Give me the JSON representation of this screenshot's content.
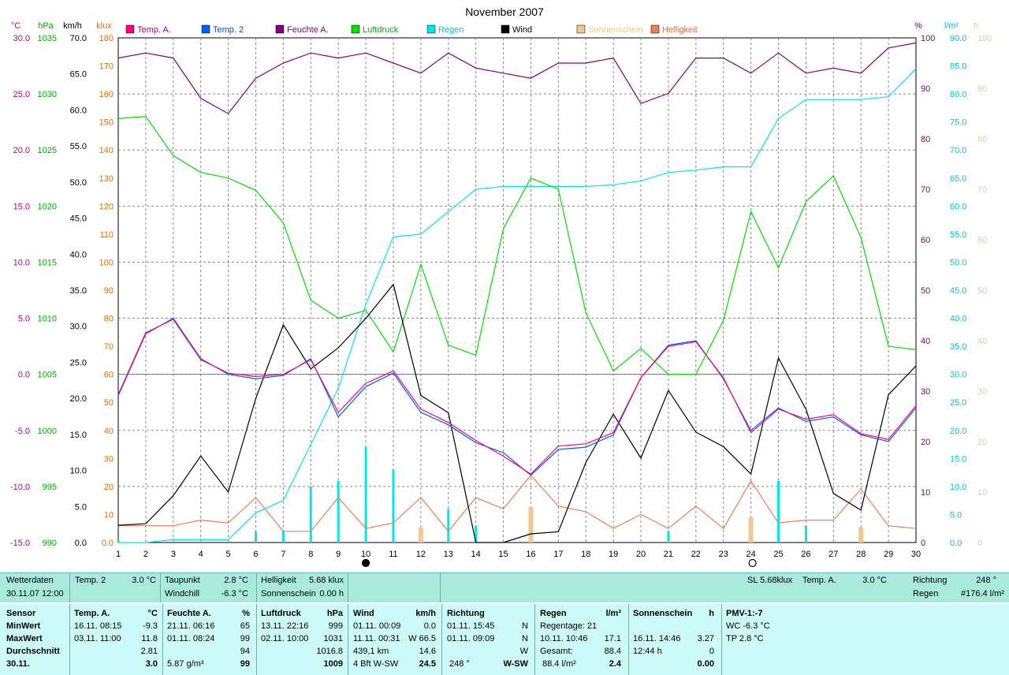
{
  "chart_data": {
    "type": "line",
    "title": "November 2007",
    "x": [
      1,
      2,
      3,
      4,
      5,
      6,
      7,
      8,
      9,
      10,
      11,
      12,
      13,
      14,
      15,
      16,
      17,
      18,
      19,
      20,
      21,
      22,
      23,
      24,
      25,
      26,
      27,
      28,
      29,
      30
    ],
    "left_axes": [
      {
        "unit": "°C",
        "color": "#c0007a",
        "range": [
          -15,
          30
        ],
        "ticks": [
          "30.0",
          "25.0",
          "20.0",
          "15.0",
          "10.0",
          "5.0",
          "0.0",
          "-5.0",
          "-10.0",
          "-15.0"
        ]
      },
      {
        "unit": "hPa",
        "color": "#00b000",
        "range": [
          990,
          1035
        ],
        "ticks": [
          "1035",
          "1030",
          "1025",
          "1020",
          "1015",
          "1010",
          "1005",
          "1000",
          "995",
          "990"
        ]
      },
      {
        "unit": "km/h",
        "color": "#000000",
        "range": [
          0,
          70
        ],
        "ticks": [
          "70.0",
          "65.0",
          "60.0",
          "55.0",
          "50.0",
          "45.0",
          "40.0",
          "35.0",
          "30.0",
          "25.0",
          "20.0",
          "15.0",
          "10.0",
          "5.0",
          "0.0"
        ]
      },
      {
        "unit": "klux",
        "color": "#e07000",
        "range": [
          0,
          180
        ],
        "ticks": [
          "180",
          "170",
          "160",
          "150",
          "140",
          "130",
          "120",
          "110",
          "100",
          "90",
          "80",
          "70",
          "60",
          "50",
          "40",
          "30",
          "20",
          "10",
          "0.0"
        ]
      }
    ],
    "right_axes": [
      {
        "unit": "%",
        "color": "#800080",
        "range": [
          0,
          100
        ],
        "ticks": [
          "100",
          "90",
          "80",
          "70",
          "60",
          "50",
          "40",
          "30",
          "20",
          "10",
          "0"
        ]
      },
      {
        "unit": "l/m²",
        "color": "#00c8c8",
        "range": [
          0,
          90
        ],
        "ticks": [
          "90.0",
          "85.0",
          "80.0",
          "75.0",
          "70.0",
          "65.0",
          "60.0",
          "55.0",
          "50.0",
          "45.0",
          "40.0",
          "35.0",
          "30.0",
          "25.0",
          "20.0",
          "15.0",
          "10.0",
          "5.0",
          "0.0"
        ]
      },
      {
        "unit": "h",
        "color": "#f0c890",
        "range": [
          0,
          100
        ],
        "ticks": [
          "100",
          "90",
          "80",
          "70",
          "60",
          "50",
          "40",
          "30",
          "20",
          "10",
          "0"
        ]
      }
    ],
    "legend": [
      {
        "name": "Temp. A.",
        "color": "#ff0080"
      },
      {
        "name": "Temp. 2",
        "color": "#0060ff"
      },
      {
        "name": "Feuchte A.",
        "color": "#800080"
      },
      {
        "name": "Luftdruck",
        "color": "#00e000"
      },
      {
        "name": "Regen",
        "color": "#00e8e8"
      },
      {
        "name": "Wind",
        "color": "#000000"
      },
      {
        "name": "Sonnenschein",
        "color": "#f0c890"
      },
      {
        "name": "Helligkeit",
        "color": "#f08050"
      }
    ],
    "series": [
      {
        "name": "Temp. A.",
        "axis": "temp",
        "color": "#ff0080",
        "values": [
          -1.8,
          3.7,
          4.9,
          1.3,
          0.1,
          -0.2,
          0.0,
          1.3,
          -3.4,
          -0.8,
          0.3,
          -3.1,
          -4.3,
          -5.9,
          -7.3,
          -8.9,
          -6.4,
          -6.2,
          -5.2,
          -0.3,
          2.5,
          2.9,
          -0.3,
          -5.2,
          -3.1,
          -4.0,
          -3.6,
          -5.3,
          -5.8,
          -2.8
        ]
      },
      {
        "name": "Temp. 2",
        "axis": "temp",
        "color": "#0060ff",
        "values": [
          -1.9,
          3.6,
          5.0,
          1.4,
          0.0,
          -0.4,
          -0.1,
          1.4,
          -3.8,
          -1.1,
          0.1,
          -3.4,
          -4.5,
          -6.1,
          -7.0,
          -9.0,
          -6.7,
          -6.5,
          -5.4,
          -0.3,
          2.6,
          3.0,
          -0.4,
          -5.0,
          -3.0,
          -4.2,
          -3.8,
          -5.4,
          -6.0,
          -3.0
        ]
      },
      {
        "name": "Feuchte A.",
        "axis": "hum",
        "color": "#800080",
        "values": [
          96,
          97,
          96,
          88,
          85,
          92,
          95,
          97,
          96,
          97,
          95,
          93,
          97,
          94,
          93,
          92,
          95,
          95,
          96,
          87,
          89,
          96,
          96,
          93,
          97,
          93,
          94,
          93,
          98,
          99
        ]
      },
      {
        "name": "Luftdruck",
        "axis": "press",
        "color": "#00e000",
        "values": [
          1027.8,
          1028,
          1024.5,
          1023,
          1022.5,
          1021.4,
          1018.5,
          1011.6,
          1010,
          1010.7,
          1007,
          1014.8,
          1007.6,
          1006.7,
          1018,
          1022.5,
          1021.5,
          1010.5,
          1005.3,
          1007.3,
          1005,
          1005,
          1009.8,
          1019.5,
          1014.5,
          1020.4,
          1022.7,
          1017.2,
          1007.5,
          1007.2
        ]
      },
      {
        "name": "Regen",
        "axis": "rain",
        "color": "#00e8e8",
        "values": [
          0,
          0,
          0.5,
          0.5,
          0.5,
          5.3,
          7.5,
          17.5,
          27.5,
          42.5,
          54.5,
          55,
          59,
          63,
          63.5,
          63.5,
          63.5,
          63.5,
          63.8,
          64.5,
          66,
          66.4,
          67,
          67,
          75.6,
          79,
          79,
          79,
          79.5,
          84.5
        ]
      },
      {
        "name": "Wind",
        "axis": "wind",
        "color": "#000000",
        "values": [
          2.4,
          2.6,
          6.5,
          12.0,
          7.0,
          20.0,
          30.2,
          24.1,
          27.0,
          31.1,
          35.8,
          20.4,
          18.0,
          0.0,
          0.0,
          1.2,
          1.5,
          11.1,
          17.8,
          11.7,
          21.1,
          15.3,
          13.3,
          9.5,
          25.6,
          18.5,
          6.8,
          4.5,
          20.5,
          24.5
        ]
      },
      {
        "name": "Helligkeit",
        "axis": "lux",
        "color": "#f08050",
        "values": [
          6,
          6,
          6,
          8,
          7,
          16,
          4,
          4,
          16,
          5,
          7,
          16,
          4,
          16,
          12,
          24,
          13,
          11,
          5,
          10,
          5,
          13,
          5,
          22,
          7,
          8,
          8,
          19,
          6,
          5
        ]
      }
    ],
    "rain_bars": [
      0.5,
      0,
      0,
      0,
      0,
      2,
      2,
      10,
      11,
      17,
      13,
      0,
      6,
      3,
      0,
      0,
      0,
      0,
      0,
      0,
      2,
      0,
      0,
      0,
      11,
      3,
      0,
      0,
      0,
      0
    ],
    "sun_bars": [
      0,
      0,
      0,
      0,
      0,
      0,
      0,
      0,
      0,
      0,
      0,
      3,
      0,
      0,
      0,
      7,
      0,
      0,
      0,
      0,
      0,
      0,
      0,
      5,
      0,
      0,
      0,
      3,
      0,
      0
    ],
    "moon_markers": [
      {
        "day": 10,
        "phase": "new"
      },
      {
        "day": 24,
        "phase": "full"
      }
    ]
  },
  "status": {
    "label1": "Wetterdaten",
    "value1": "30.11.07 12:00",
    "temp2_label": "Temp. 2",
    "temp2_value": "3.0 °C",
    "taupunkt_label": "Taupunkt",
    "taupunkt_value": "2.8 °C",
    "windchill_label": "Windchill",
    "windchill_value": "-6.3 °C",
    "hell_label": "Helligkeit",
    "hell_value": "5.68 klux",
    "sonne_label": "Sonnenschein",
    "sonne_value": "0.00 h",
    "sl": "SL 5.68klux",
    "tempa_label": "Temp. A.",
    "tempa_value": "3.0 °C",
    "richtung_label": "Richtung",
    "richtung_value": "248 °",
    "regen_label": "Regen",
    "regen_value": "#176.4 l/m²"
  },
  "stats": {
    "row_labels": [
      "Sensor",
      "MinWert",
      "MaxWert",
      "Durchschnitt",
      "30.11."
    ],
    "tempa": {
      "h": "Temp. A.",
      "u": "°C",
      "min_t": "16.11.  08:15",
      "min": "-9.3",
      "max_t": "03.11.  11:00",
      "max": "11.8",
      "avg": "2.81",
      "cur": "3.0"
    },
    "feuchte": {
      "h": "Feuchte A.",
      "u": "%",
      "min_t": "21.11.  06:16",
      "min": "65",
      "max_t": "01.11.  08:24",
      "max": "99",
      "avg": "94",
      "cur_t": "5.87 g/m³",
      "cur": "99"
    },
    "luft": {
      "h": "Luftdruck",
      "u": "hPa",
      "min_t": "13.11.  22:16",
      "min": "999",
      "max_t": "02.11.  10:00",
      "max": "1031",
      "avg": "1016.8",
      "cur": "1009"
    },
    "wind": {
      "h": "Wind",
      "u": "km/h",
      "min_t": "01.11.  00:09",
      "min": "0.0",
      "max_t": "11.11.  00:31",
      "max": "W 66.5",
      "avg_t": "439,1 km",
      "avg": "14.6",
      "cur_t": "4 Bft W-SW",
      "cur": "24.5"
    },
    "richtung": {
      "h": "Richtung",
      "min_t": "01.11.  15:45",
      "min": "N",
      "max_t": "01.11.  09:09",
      "max": "N",
      "avg": "W",
      "cur_t": "248 °",
      "cur": "W-SW"
    },
    "regen": {
      "h": "Regen",
      "u": "l/m²",
      "r1": "Regentage: 21",
      "r2_t": "10.11.  10:46",
      "r2": "17.1",
      "r3_t": "Gesamt:",
      "r3": "88.4",
      "cur_t": "88.4 l/m²",
      "cur": "2.4"
    },
    "sonne": {
      "h": "Sonnenschein",
      "u": "h",
      "r2_t": "16.11.  14:46",
      "r2": "3.27",
      "r3_t": "12:44 h",
      "r3": "0",
      "cur": "0.00"
    },
    "pmv": {
      "h": "PMV-1:-7",
      "r1": "WC -6.3 °C",
      "r2": "TP 2.8 °C"
    }
  }
}
